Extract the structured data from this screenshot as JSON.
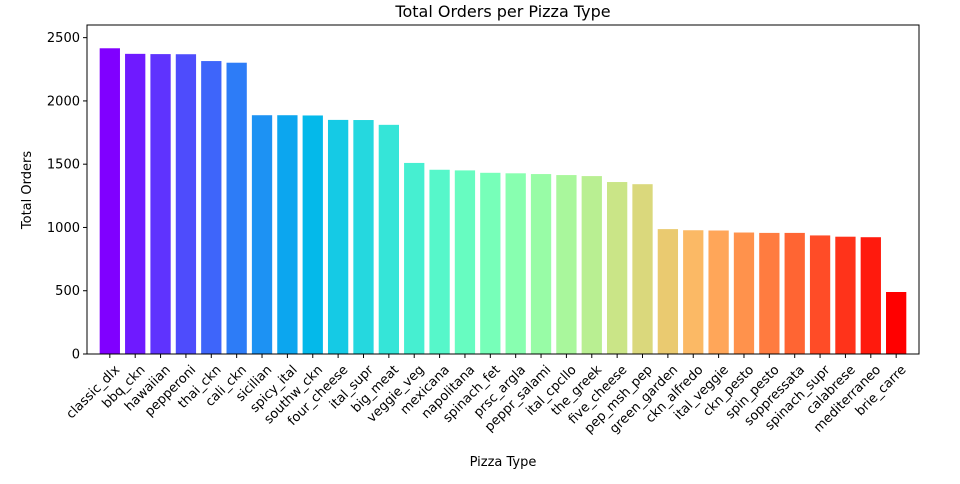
{
  "chart_data": {
    "type": "bar",
    "title": "Total Orders per Pizza Type",
    "xlabel": "Pizza Type",
    "ylabel": "Total Orders",
    "ylim": [
      0,
      2600
    ],
    "yticks": [
      0,
      500,
      1000,
      1500,
      2000,
      2500
    ],
    "grid": false,
    "colormap": "rainbow",
    "categories": [
      "classic_dlx",
      "bbq_ckn",
      "hawaiian",
      "pepperoni",
      "thai_ckn",
      "cali_ckn",
      "sicilian",
      "spicy_ital",
      "southw_ckn",
      "four_cheese",
      "ital_supr",
      "big_meat",
      "veggie_veg",
      "mexicana",
      "napolitana",
      "spinach_fet",
      "prsc_argla",
      "peppr_salami",
      "ital_cpcllo",
      "the_greek",
      "five_cheese",
      "pep_msh_pep",
      "green_garden",
      "ckn_alfredo",
      "ital_veggie",
      "ckn_pesto",
      "spin_pesto",
      "soppressata",
      "spinach_supr",
      "calabrese",
      "mediterraneo",
      "brie_carre"
    ],
    "values": [
      2416,
      2372,
      2370,
      2369,
      2315,
      2302,
      1887,
      1887,
      1885,
      1850,
      1849,
      1811,
      1510,
      1456,
      1451,
      1432,
      1428,
      1422,
      1414,
      1406,
      1359,
      1342,
      987,
      978,
      976,
      960,
      957,
      957,
      937,
      927,
      923,
      490
    ]
  }
}
